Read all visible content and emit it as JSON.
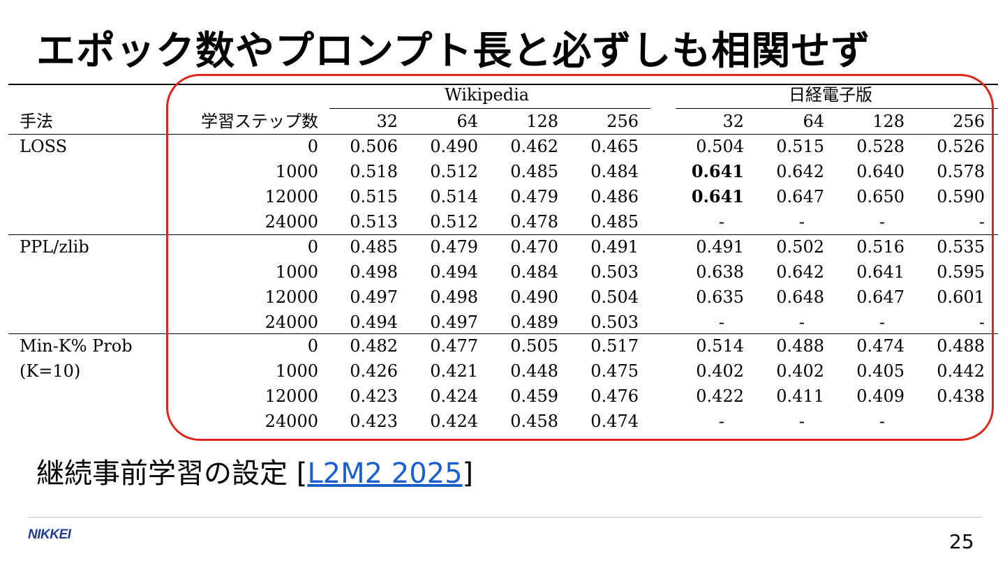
{
  "slide": {
    "title": "エポック数やプロンプト長と必ずしも相関せず",
    "caption_prefix": "継続事前学習の設定 [",
    "caption_link": "L2M2 2025",
    "caption_suffix": "]",
    "logo": "NIKKEI",
    "page_number": "25",
    "highlight_color": "#e0231b",
    "link_color": "#1a5fd0"
  },
  "table": {
    "group_headers": [
      "Wikipedia",
      "日経電子版"
    ],
    "col_headers": [
      "手法",
      "学習ステップ数",
      "32",
      "64",
      "128",
      "256",
      "32",
      "64",
      "128",
      "256"
    ],
    "method_labels": [
      "LOSS",
      "PPL/zlib",
      "Min-K% Prob",
      "(K=10)"
    ],
    "rows": [
      {
        "steps": "0",
        "vals": [
          "0.506",
          "0.490",
          "0.462",
          "0.465",
          "0.504",
          "0.515",
          "0.528",
          "0.526"
        ]
      },
      {
        "steps": "1000",
        "vals": [
          "0.518",
          "0.512",
          "0.485",
          "0.484",
          "0.641",
          "0.642",
          "0.640",
          "0.578"
        ]
      },
      {
        "steps": "12000",
        "vals": [
          "0.515",
          "0.514",
          "0.479",
          "0.486",
          "0.641",
          "0.647",
          "0.650",
          "0.590"
        ]
      },
      {
        "steps": "24000",
        "vals": [
          "0.513",
          "0.512",
          "0.478",
          "0.485",
          "-",
          "-",
          "-",
          "-"
        ]
      },
      {
        "steps": "0",
        "vals": [
          "0.485",
          "0.479",
          "0.470",
          "0.491",
          "0.491",
          "0.502",
          "0.516",
          "0.535"
        ]
      },
      {
        "steps": "1000",
        "vals": [
          "0.498",
          "0.494",
          "0.484",
          "0.503",
          "0.638",
          "0.642",
          "0.641",
          "0.595"
        ]
      },
      {
        "steps": "12000",
        "vals": [
          "0.497",
          "0.498",
          "0.490",
          "0.504",
          "0.635",
          "0.648",
          "0.647",
          "0.601"
        ]
      },
      {
        "steps": "24000",
        "vals": [
          "0.494",
          "0.497",
          "0.489",
          "0.503",
          "-",
          "-",
          "-",
          "-"
        ]
      },
      {
        "steps": "0",
        "vals": [
          "0.482",
          "0.477",
          "0.505",
          "0.517",
          "0.514",
          "0.488",
          "0.474",
          "0.488"
        ]
      },
      {
        "steps": "1000",
        "vals": [
          "0.426",
          "0.421",
          "0.448",
          "0.475",
          "0.402",
          "0.402",
          "0.405",
          "0.442"
        ]
      },
      {
        "steps": "12000",
        "vals": [
          "0.423",
          "0.424",
          "0.459",
          "0.476",
          "0.422",
          "0.411",
          "0.409",
          "0.438"
        ]
      },
      {
        "steps": "24000",
        "vals": [
          "0.423",
          "0.424",
          "0.458",
          "0.474",
          "-",
          "-",
          "-",
          ""
        ]
      }
    ],
    "bold_cells": [
      [
        1,
        4
      ],
      [
        2,
        4
      ]
    ]
  }
}
